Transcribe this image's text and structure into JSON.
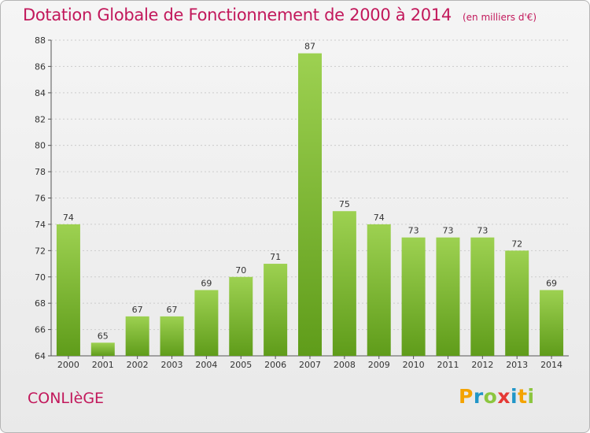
{
  "header": {
    "title": "Dotation Globale de Fonctionnement de 2000 à 2014",
    "unit": "(en milliers d'€)"
  },
  "footer": {
    "commune": "CONLIèGE",
    "logo": [
      "P",
      "r",
      "o",
      "x",
      "i",
      "t",
      "i"
    ],
    "logo_colors": [
      "#f4a300",
      "#2196c8",
      "#8cc63f",
      "#e53935",
      "#2196c8",
      "#f4a300",
      "#8cc63f"
    ]
  },
  "colors": {
    "bar_top": "#9dd151",
    "bar_bottom": "#5f9c1a",
    "title": "#c2185b",
    "grid": "#cccccc"
  },
  "chart_data": {
    "type": "bar",
    "title": "Dotation Globale de Fonctionnement de 2000 à 2014",
    "ylabel": "",
    "xlabel": "",
    "categories": [
      "2000",
      "2001",
      "2002",
      "2003",
      "2004",
      "2005",
      "2006",
      "2007",
      "2008",
      "2009",
      "2010",
      "2011",
      "2012",
      "2013",
      "2014"
    ],
    "values": [
      74,
      65,
      67,
      67,
      69,
      70,
      71,
      87,
      75,
      74,
      73,
      73,
      73,
      72,
      69
    ],
    "ylim": [
      64,
      88
    ],
    "yticks": [
      64,
      66,
      68,
      70,
      72,
      74,
      76,
      78,
      80,
      82,
      84,
      86,
      88
    ],
    "grid": "horizontal-dashed",
    "legend": "none"
  }
}
